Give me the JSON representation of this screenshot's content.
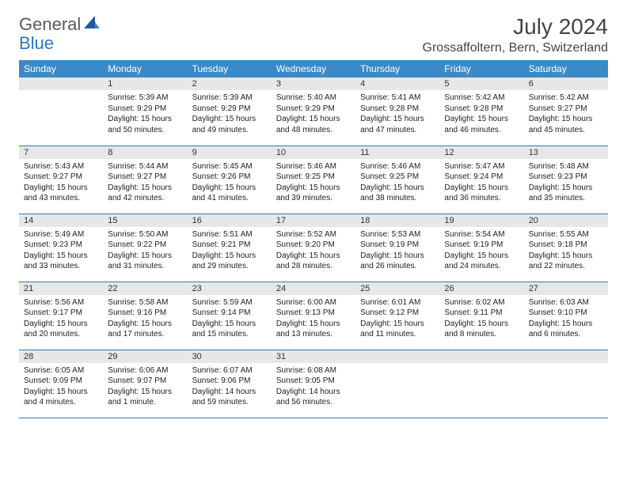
{
  "logo": {
    "general": "General",
    "blue": "Blue"
  },
  "title": "July 2024",
  "location": "Grossaffoltern, Bern, Switzerland",
  "colors": {
    "header_bg": "#3a8ac9",
    "header_text": "#ffffff",
    "daynum_bg": "#e7e7e7",
    "row_border": "#2a7ac0",
    "logo_gray": "#5a5a5a",
    "logo_blue": "#2a7ac0"
  },
  "weekdays": [
    "Sunday",
    "Monday",
    "Tuesday",
    "Wednesday",
    "Thursday",
    "Friday",
    "Saturday"
  ],
  "weeks": [
    [
      {
        "n": "",
        "sr": "",
        "ss": "",
        "dl": ""
      },
      {
        "n": "1",
        "sr": "Sunrise: 5:39 AM",
        "ss": "Sunset: 9:29 PM",
        "dl": "Daylight: 15 hours and 50 minutes."
      },
      {
        "n": "2",
        "sr": "Sunrise: 5:39 AM",
        "ss": "Sunset: 9:29 PM",
        "dl": "Daylight: 15 hours and 49 minutes."
      },
      {
        "n": "3",
        "sr": "Sunrise: 5:40 AM",
        "ss": "Sunset: 9:29 PM",
        "dl": "Daylight: 15 hours and 48 minutes."
      },
      {
        "n": "4",
        "sr": "Sunrise: 5:41 AM",
        "ss": "Sunset: 9:28 PM",
        "dl": "Daylight: 15 hours and 47 minutes."
      },
      {
        "n": "5",
        "sr": "Sunrise: 5:42 AM",
        "ss": "Sunset: 9:28 PM",
        "dl": "Daylight: 15 hours and 46 minutes."
      },
      {
        "n": "6",
        "sr": "Sunrise: 5:42 AM",
        "ss": "Sunset: 9:27 PM",
        "dl": "Daylight: 15 hours and 45 minutes."
      }
    ],
    [
      {
        "n": "7",
        "sr": "Sunrise: 5:43 AM",
        "ss": "Sunset: 9:27 PM",
        "dl": "Daylight: 15 hours and 43 minutes."
      },
      {
        "n": "8",
        "sr": "Sunrise: 5:44 AM",
        "ss": "Sunset: 9:27 PM",
        "dl": "Daylight: 15 hours and 42 minutes."
      },
      {
        "n": "9",
        "sr": "Sunrise: 5:45 AM",
        "ss": "Sunset: 9:26 PM",
        "dl": "Daylight: 15 hours and 41 minutes."
      },
      {
        "n": "10",
        "sr": "Sunrise: 5:46 AM",
        "ss": "Sunset: 9:25 PM",
        "dl": "Daylight: 15 hours and 39 minutes."
      },
      {
        "n": "11",
        "sr": "Sunrise: 5:46 AM",
        "ss": "Sunset: 9:25 PM",
        "dl": "Daylight: 15 hours and 38 minutes."
      },
      {
        "n": "12",
        "sr": "Sunrise: 5:47 AM",
        "ss": "Sunset: 9:24 PM",
        "dl": "Daylight: 15 hours and 36 minutes."
      },
      {
        "n": "13",
        "sr": "Sunrise: 5:48 AM",
        "ss": "Sunset: 9:23 PM",
        "dl": "Daylight: 15 hours and 35 minutes."
      }
    ],
    [
      {
        "n": "14",
        "sr": "Sunrise: 5:49 AM",
        "ss": "Sunset: 9:23 PM",
        "dl": "Daylight: 15 hours and 33 minutes."
      },
      {
        "n": "15",
        "sr": "Sunrise: 5:50 AM",
        "ss": "Sunset: 9:22 PM",
        "dl": "Daylight: 15 hours and 31 minutes."
      },
      {
        "n": "16",
        "sr": "Sunrise: 5:51 AM",
        "ss": "Sunset: 9:21 PM",
        "dl": "Daylight: 15 hours and 29 minutes."
      },
      {
        "n": "17",
        "sr": "Sunrise: 5:52 AM",
        "ss": "Sunset: 9:20 PM",
        "dl": "Daylight: 15 hours and 28 minutes."
      },
      {
        "n": "18",
        "sr": "Sunrise: 5:53 AM",
        "ss": "Sunset: 9:19 PM",
        "dl": "Daylight: 15 hours and 26 minutes."
      },
      {
        "n": "19",
        "sr": "Sunrise: 5:54 AM",
        "ss": "Sunset: 9:19 PM",
        "dl": "Daylight: 15 hours and 24 minutes."
      },
      {
        "n": "20",
        "sr": "Sunrise: 5:55 AM",
        "ss": "Sunset: 9:18 PM",
        "dl": "Daylight: 15 hours and 22 minutes."
      }
    ],
    [
      {
        "n": "21",
        "sr": "Sunrise: 5:56 AM",
        "ss": "Sunset: 9:17 PM",
        "dl": "Daylight: 15 hours and 20 minutes."
      },
      {
        "n": "22",
        "sr": "Sunrise: 5:58 AM",
        "ss": "Sunset: 9:16 PM",
        "dl": "Daylight: 15 hours and 17 minutes."
      },
      {
        "n": "23",
        "sr": "Sunrise: 5:59 AM",
        "ss": "Sunset: 9:14 PM",
        "dl": "Daylight: 15 hours and 15 minutes."
      },
      {
        "n": "24",
        "sr": "Sunrise: 6:00 AM",
        "ss": "Sunset: 9:13 PM",
        "dl": "Daylight: 15 hours and 13 minutes."
      },
      {
        "n": "25",
        "sr": "Sunrise: 6:01 AM",
        "ss": "Sunset: 9:12 PM",
        "dl": "Daylight: 15 hours and 11 minutes."
      },
      {
        "n": "26",
        "sr": "Sunrise: 6:02 AM",
        "ss": "Sunset: 9:11 PM",
        "dl": "Daylight: 15 hours and 8 minutes."
      },
      {
        "n": "27",
        "sr": "Sunrise: 6:03 AM",
        "ss": "Sunset: 9:10 PM",
        "dl": "Daylight: 15 hours and 6 minutes."
      }
    ],
    [
      {
        "n": "28",
        "sr": "Sunrise: 6:05 AM",
        "ss": "Sunset: 9:09 PM",
        "dl": "Daylight: 15 hours and 4 minutes."
      },
      {
        "n": "29",
        "sr": "Sunrise: 6:06 AM",
        "ss": "Sunset: 9:07 PM",
        "dl": "Daylight: 15 hours and 1 minute."
      },
      {
        "n": "30",
        "sr": "Sunrise: 6:07 AM",
        "ss": "Sunset: 9:06 PM",
        "dl": "Daylight: 14 hours and 59 minutes."
      },
      {
        "n": "31",
        "sr": "Sunrise: 6:08 AM",
        "ss": "Sunset: 9:05 PM",
        "dl": "Daylight: 14 hours and 56 minutes."
      },
      {
        "n": "",
        "sr": "",
        "ss": "",
        "dl": ""
      },
      {
        "n": "",
        "sr": "",
        "ss": "",
        "dl": ""
      },
      {
        "n": "",
        "sr": "",
        "ss": "",
        "dl": ""
      }
    ]
  ]
}
